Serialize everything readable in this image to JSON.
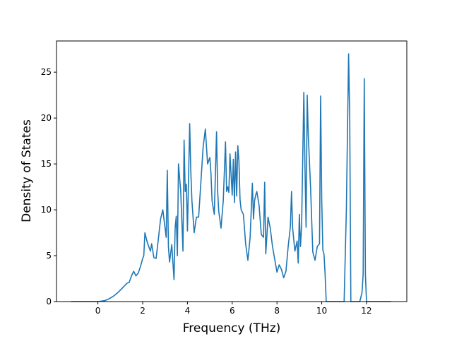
{
  "chart_data": {
    "type": "line",
    "title": "",
    "xlabel": "Frequency (THz)",
    "ylabel": "Density of States",
    "xlim": [
      -1.85,
      13.8
    ],
    "ylim": [
      0,
      28.4
    ],
    "xticks": [
      0,
      2,
      4,
      6,
      8,
      10,
      12
    ],
    "yticks": [
      0,
      5,
      10,
      15,
      20,
      25
    ],
    "xtick_labels": [
      "0",
      "2",
      "4",
      "6",
      "8",
      "10",
      "12"
    ],
    "ytick_labels": [
      "0",
      "5",
      "10",
      "15",
      "20",
      "25"
    ],
    "grid": false,
    "legend": "none",
    "series": [
      {
        "color": "#1f77b4",
        "x": [
          -1.2,
          -0.6,
          0.0,
          0.3,
          0.5,
          0.7,
          0.9,
          1.1,
          1.3,
          1.4,
          1.5,
          1.6,
          1.7,
          1.8,
          1.9,
          2.0,
          2.05,
          2.1,
          2.2,
          2.3,
          2.35,
          2.4,
          2.5,
          2.6,
          2.7,
          2.8,
          2.9,
          3.0,
          3.05,
          3.1,
          3.15,
          3.2,
          3.3,
          3.4,
          3.45,
          3.5,
          3.55,
          3.6,
          3.7,
          3.8,
          3.85,
          3.9,
          3.95,
          4.0,
          4.1,
          4.15,
          4.2,
          4.3,
          4.4,
          4.5,
          4.6,
          4.7,
          4.8,
          4.9,
          5.0,
          5.05,
          5.1,
          5.2,
          5.3,
          5.35,
          5.4,
          5.5,
          5.6,
          5.7,
          5.75,
          5.8,
          5.85,
          5.9,
          6.0,
          6.05,
          6.1,
          6.15,
          6.2,
          6.25,
          6.3,
          6.35,
          6.4,
          6.5,
          6.6,
          6.7,
          6.8,
          6.9,
          6.95,
          7.0,
          7.05,
          7.1,
          7.2,
          7.3,
          7.4,
          7.45,
          7.5,
          7.6,
          7.7,
          7.8,
          7.9,
          8.0,
          8.1,
          8.2,
          8.3,
          8.4,
          8.5,
          8.6,
          8.65,
          8.7,
          8.8,
          8.9,
          8.95,
          9.0,
          9.05,
          9.1,
          9.2,
          9.25,
          9.3,
          9.35,
          9.4,
          9.5,
          9.6,
          9.7,
          9.8,
          9.9,
          9.95,
          10.0,
          10.05,
          10.1,
          10.15,
          10.2,
          10.3,
          10.5,
          10.8,
          11.0,
          11.1,
          11.2,
          11.25,
          11.3,
          11.4,
          11.5,
          11.6,
          11.7,
          11.75,
          11.8,
          11.85,
          11.9,
          11.95,
          12.0,
          12.5,
          13.1
        ],
        "y": [
          0.0,
          0.0,
          0.0,
          0.1,
          0.3,
          0.6,
          1.0,
          1.5,
          2.0,
          2.1,
          2.8,
          3.3,
          2.8,
          3.1,
          3.8,
          4.7,
          5.0,
          7.5,
          6.5,
          5.8,
          5.5,
          6.3,
          4.8,
          4.7,
          6.8,
          9.0,
          10.0,
          8.0,
          7.0,
          14.3,
          6.0,
          4.3,
          6.2,
          2.4,
          8.0,
          9.3,
          5.0,
          15.0,
          12.0,
          5.5,
          17.6,
          12.0,
          12.8,
          7.7,
          19.4,
          14.2,
          11.0,
          7.5,
          9.2,
          9.2,
          13.0,
          16.8,
          18.8,
          15.0,
          15.7,
          14.0,
          11.0,
          9.5,
          18.5,
          12.0,
          9.8,
          8.0,
          11.0,
          17.4,
          12.0,
          12.5,
          11.9,
          16.1,
          11.6,
          15.5,
          10.8,
          16.3,
          11.5,
          17.0,
          15.3,
          11.1,
          10.0,
          9.5,
          6.3,
          4.5,
          7.0,
          12.9,
          9.0,
          11.0,
          11.6,
          12.0,
          10.5,
          7.3,
          7.0,
          13.0,
          5.2,
          9.2,
          8.0,
          6.0,
          4.6,
          3.2,
          4.0,
          3.5,
          2.6,
          3.3,
          6.0,
          8.2,
          12.0,
          8.0,
          5.5,
          6.6,
          4.2,
          9.5,
          6.0,
          8.2,
          22.8,
          14.7,
          8.1,
          22.5,
          18.0,
          12.5,
          5.4,
          4.5,
          6.0,
          6.3,
          22.4,
          11.0,
          5.6,
          5.2,
          3.0,
          0.0,
          0.0,
          0.0,
          0.0,
          0.0,
          10.0,
          27.0,
          20.0,
          0.0,
          0.0,
          0.0,
          0.0,
          0.0,
          0.5,
          1.0,
          3.0,
          24.3,
          3.0,
          0.0,
          0.0,
          0.0
        ]
      }
    ]
  }
}
